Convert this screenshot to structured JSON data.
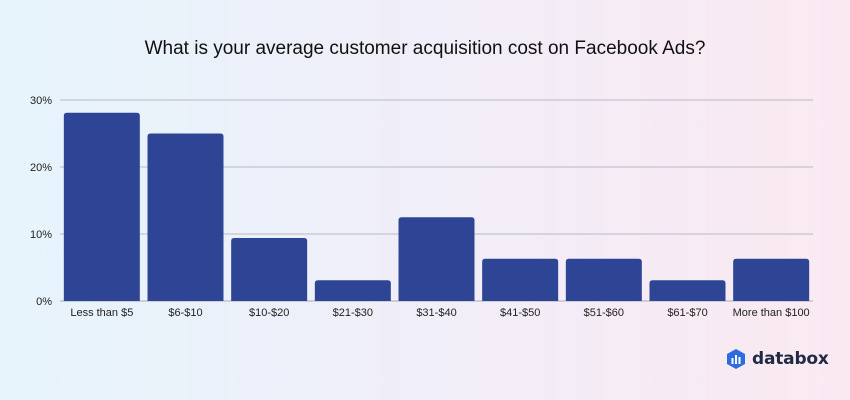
{
  "colors": {
    "bar": "#2e4596",
    "grid": "#b9b9c4",
    "axis_text": "#222222",
    "logo_accent": "#2d6ce0"
  },
  "brand": {
    "name": "databox",
    "icon": "databox-logo-icon"
  },
  "chart_data": {
    "type": "bar",
    "title": "What is your average customer acquisition cost on Facebook Ads?",
    "xlabel": "",
    "ylabel": "",
    "categories": [
      "Less than $5",
      "$6-$10",
      "$10-$20",
      "$21-$30",
      "$31-$40",
      "$41-$50",
      "$51-$60",
      "$61-$70",
      "More than $100"
    ],
    "values": [
      28.1,
      25.0,
      9.4,
      3.1,
      12.5,
      6.3,
      6.3,
      3.1,
      6.3
    ],
    "ylim": [
      0,
      30
    ],
    "yticks": [
      0,
      10,
      20,
      30
    ],
    "ytick_labels": [
      "0%",
      "10%",
      "20%",
      "30%"
    ],
    "grid": true,
    "legend": "none"
  }
}
